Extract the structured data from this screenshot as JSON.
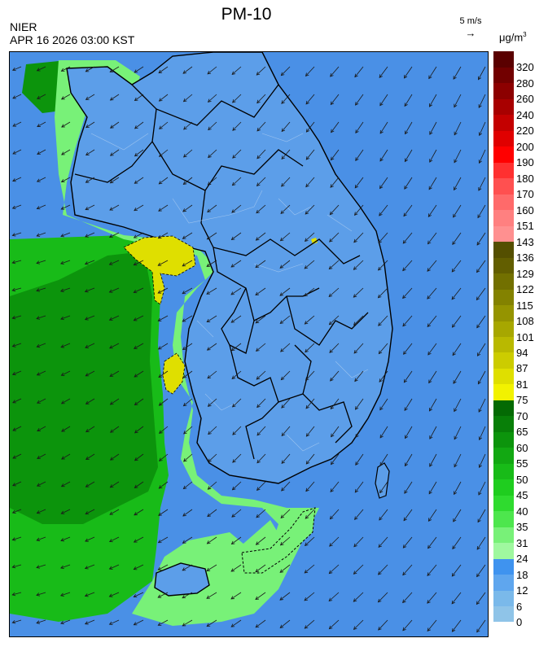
{
  "header": {
    "title": "PM-10",
    "agency": "NIER",
    "timestamp": "APR 16 2026 03:00 KST",
    "wind_reference": "5 m/s",
    "unit": "μg/m",
    "unit_exponent": "3"
  },
  "legend": {
    "levels": [
      {
        "label": "0",
        "color": "#8fc4e8"
      },
      {
        "label": "6",
        "color": "#7ab9ea"
      },
      {
        "label": "12",
        "color": "#5fa6ee"
      },
      {
        "label": "18",
        "color": "#3f93ef"
      },
      {
        "label": "24",
        "color": "#9ff89f"
      },
      {
        "label": "31",
        "color": "#78f178"
      },
      {
        "label": "35",
        "color": "#4de64d"
      },
      {
        "label": "40",
        "color": "#2fdb2f"
      },
      {
        "label": "45",
        "color": "#1fcd1f"
      },
      {
        "label": "50",
        "color": "#18bb18"
      },
      {
        "label": "55",
        "color": "#12a812"
      },
      {
        "label": "60",
        "color": "#0c940c"
      },
      {
        "label": "65",
        "color": "#087f08"
      },
      {
        "label": "70",
        "color": "#046a04"
      },
      {
        "label": "75",
        "color": "#f2f200"
      },
      {
        "label": "81",
        "color": "#dfdf00"
      },
      {
        "label": "87",
        "color": "#cccc00"
      },
      {
        "label": "94",
        "color": "#b9b900"
      },
      {
        "label": "101",
        "color": "#a7a700"
      },
      {
        "label": "108",
        "color": "#959400"
      },
      {
        "label": "115",
        "color": "#838200"
      },
      {
        "label": "122",
        "color": "#727000"
      },
      {
        "label": "129",
        "color": "#625e00"
      },
      {
        "label": "136",
        "color": "#544f00"
      },
      {
        "label": "143",
        "color": "#ff9090"
      },
      {
        "label": "151",
        "color": "#ff8080"
      },
      {
        "label": "160",
        "color": "#ff6a6a"
      },
      {
        "label": "170",
        "color": "#ff5050"
      },
      {
        "label": "180",
        "color": "#ff3030"
      },
      {
        "label": "190",
        "color": "#ff0000"
      },
      {
        "label": "200",
        "color": "#e00000"
      },
      {
        "label": "220",
        "color": "#c40000"
      },
      {
        "label": "240",
        "color": "#a80000"
      },
      {
        "label": "260",
        "color": "#8c0000"
      },
      {
        "label": "280",
        "color": "#720000"
      },
      {
        "label": "320",
        "color": "#5a0000"
      }
    ]
  },
  "map": {
    "sea_color": "#4a90e6",
    "land_color": "#5c9ee9",
    "coastal_band_color": "#78f178",
    "west_sea_plume_color": "#18bb18",
    "west_sea_core_color": "#0c940c",
    "hotspot_color": "#dfdf00",
    "border_color": "#000000",
    "wind_arrow_color": "#1a1a1a"
  }
}
